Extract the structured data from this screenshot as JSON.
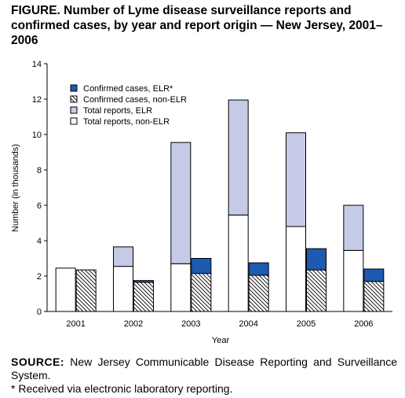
{
  "figure": {
    "title": "FIGURE. Number of Lyme disease surveillance reports and confirmed cases, by year and report origin — New Jersey, 2001–2006",
    "source_label": "SOURCE:",
    "source_text": "New Jersey Communicable Disease Reporting and Surveillance System.",
    "footnote": "* Received via electronic laboratory reporting."
  },
  "chart_data": {
    "type": "bar",
    "stacked": true,
    "categories": [
      "2001",
      "2002",
      "2003",
      "2004",
      "2005",
      "2006"
    ],
    "xlabel": "Year",
    "ylabel": "Number (in thousands)",
    "ylim": [
      0,
      14
    ],
    "yticks": [
      0,
      2,
      4,
      6,
      8,
      10,
      12,
      14
    ],
    "grid": false,
    "legend_position": "top-left",
    "colors": {
      "confirmed_elr": "#1e5bb0",
      "total_elr": "#c5cbe6",
      "non_elr": "#ffffff",
      "hatch": "#000000"
    },
    "legend": [
      {
        "key": "confirmed_elr",
        "label": "Confirmed cases, ELR*"
      },
      {
        "key": "confirmed_non_elr",
        "label": "Confirmed cases, non-ELR"
      },
      {
        "key": "total_elr",
        "label": "Total reports, ELR"
      },
      {
        "key": "total_non_elr",
        "label": "Total reports, non-ELR"
      }
    ],
    "total_reports": {
      "non_elr": [
        2.45,
        2.55,
        2.7,
        5.45,
        4.8,
        3.45
      ],
      "elr": [
        0,
        1.1,
        6.85,
        6.5,
        5.3,
        2.55
      ]
    },
    "confirmed_cases": {
      "non_elr": [
        2.35,
        1.65,
        2.15,
        2.05,
        2.35,
        1.7
      ],
      "elr": [
        0,
        0.1,
        0.85,
        0.7,
        1.2,
        0.7
      ]
    }
  }
}
